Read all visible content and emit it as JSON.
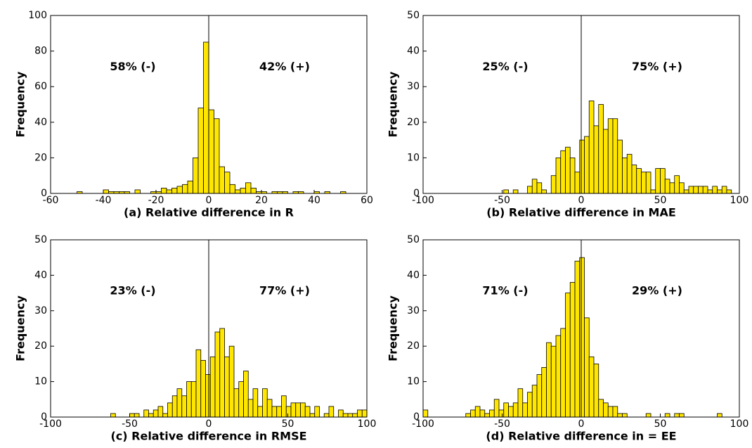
{
  "chart_data": [
    {
      "type": "histogram",
      "xlabel": "(a) Relative difference in R",
      "ylabel": "Frequency",
      "annotations": [
        "58% (-)",
        "42% (+)"
      ],
      "color": "#ffe600",
      "bins": [
        -52,
        -50,
        -48,
        -46,
        -44,
        -42,
        -40,
        -38,
        -36,
        -34,
        -32,
        -30,
        -28,
        -26,
        -24,
        -22,
        -20,
        -18,
        -16,
        -14,
        -12,
        -10,
        -8,
        -6,
        -4,
        -2,
        0,
        2,
        4,
        6,
        8,
        10,
        12,
        14,
        16,
        18,
        20,
        22,
        24,
        26,
        28,
        30,
        32,
        34,
        36,
        38,
        40,
        42,
        44,
        46,
        48,
        50,
        52,
        54
      ],
      "values": [
        0,
        1,
        0,
        0,
        0,
        0,
        2,
        1,
        1,
        1,
        1,
        0,
        2,
        0,
        0,
        1,
        1,
        3,
        2,
        3,
        4,
        5,
        7,
        20,
        48,
        85,
        47,
        42,
        15,
        12,
        5,
        2,
        3,
        6,
        3,
        1,
        1,
        0,
        1,
        1,
        1,
        0,
        1,
        1,
        0,
        0,
        1,
        0,
        1,
        0,
        0,
        1,
        0
      ],
      "xlim": [
        -60,
        60
      ],
      "ylim": [
        0,
        100
      ],
      "xticks": [
        -60,
        -40,
        -20,
        0,
        20,
        40,
        60
      ],
      "yticks": [
        0,
        20,
        40,
        60,
        80,
        100
      ]
    },
    {
      "type": "histogram",
      "xlabel": "(b) Relative difference in MAE",
      "ylabel": "Frequency",
      "annotations": [
        "25% (-)",
        "75% (+)"
      ],
      "color": "#ffe600",
      "bins": [
        -49,
        -46,
        -43,
        -40,
        -37,
        -34,
        -31,
        -28,
        -25,
        -22,
        -19,
        -16,
        -13,
        -10,
        -7,
        -4,
        -1,
        2,
        5,
        8,
        11,
        14,
        17,
        20,
        23,
        26,
        29,
        32,
        35,
        38,
        41,
        44,
        47,
        50,
        53,
        56,
        59,
        62,
        65,
        68,
        71,
        74,
        77,
        80,
        83,
        86,
        89,
        92,
        95
      ],
      "values": [
        1,
        0,
        1,
        0,
        0,
        2,
        4,
        3,
        1,
        0,
        5,
        10,
        12,
        13,
        10,
        6,
        15,
        16,
        26,
        19,
        25,
        18,
        21,
        21,
        15,
        10,
        11,
        8,
        7,
        6,
        6,
        1,
        7,
        7,
        4,
        3,
        5,
        3,
        1,
        2,
        2,
        2,
        2,
        1,
        2,
        1,
        2,
        1
      ],
      "xlim": [
        -100,
        100
      ],
      "ylim": [
        0,
        50
      ],
      "xticks": [
        -100,
        -50,
        0,
        50,
        100
      ],
      "yticks": [
        0,
        10,
        20,
        30,
        40,
        50
      ]
    },
    {
      "type": "histogram",
      "xlabel": "(c) Relative difference in RMSE",
      "ylabel": "Frequency",
      "annotations": [
        "23% (-)",
        "77% (+)"
      ],
      "color": "#ffe600",
      "bins": [
        -62,
        -59,
        -56,
        -53,
        -50,
        -47,
        -44,
        -41,
        -38,
        -35,
        -32,
        -29,
        -26,
        -23,
        -20,
        -17,
        -14,
        -11,
        -8,
        -5,
        -2,
        1,
        4,
        7,
        10,
        13,
        16,
        19,
        22,
        25,
        28,
        31,
        34,
        37,
        40,
        43,
        46,
        49,
        52,
        55,
        58,
        61,
        64,
        67,
        70,
        73,
        76,
        79,
        82,
        85,
        88,
        91,
        94,
        97,
        100
      ],
      "values": [
        1,
        0,
        0,
        0,
        1,
        1,
        0,
        2,
        1,
        2,
        3,
        1,
        4,
        6,
        8,
        6,
        10,
        10,
        19,
        16,
        12,
        17,
        24,
        25,
        17,
        20,
        8,
        10,
        13,
        5,
        8,
        3,
        8,
        5,
        3,
        3,
        6,
        3,
        4,
        4,
        4,
        3,
        1,
        3,
        0,
        1,
        3,
        0,
        2,
        1,
        1,
        1,
        2,
        2
      ],
      "xlim": [
        -100,
        100
      ],
      "ylim": [
        0,
        50
      ],
      "xticks": [
        -100,
        -50,
        0,
        50,
        100
      ],
      "yticks": [
        0,
        10,
        20,
        30,
        40,
        50
      ]
    },
    {
      "type": "histogram",
      "xlabel": "(d) Relative difference in = EE",
      "ylabel": "Frequency",
      "annotations": [
        "71% (-)",
        "29% (+)"
      ],
      "color": "#ffe600",
      "bins": [
        -100,
        -97,
        -94,
        -91,
        -88,
        -85,
        -82,
        -79,
        -76,
        -73,
        -70,
        -67,
        -64,
        -61,
        -58,
        -55,
        -52,
        -49,
        -46,
        -43,
        -40,
        -37,
        -34,
        -31,
        -28,
        -25,
        -22,
        -19,
        -16,
        -13,
        -10,
        -7,
        -4,
        -1,
        2,
        5,
        8,
        11,
        14,
        17,
        20,
        23,
        26,
        29,
        32,
        35,
        38,
        41,
        44,
        47,
        50,
        53,
        56,
        59,
        62,
        65,
        68,
        71,
        74,
        77,
        80,
        83,
        86,
        89
      ],
      "values": [
        2,
        0,
        0,
        0,
        0,
        0,
        0,
        0,
        0,
        1,
        2,
        3,
        2,
        1,
        2,
        5,
        2,
        4,
        3,
        4,
        8,
        4,
        7,
        9,
        12,
        14,
        21,
        20,
        23,
        25,
        35,
        38,
        44,
        45,
        28,
        17,
        15,
        5,
        4,
        3,
        3,
        1,
        1,
        0,
        0,
        0,
        0,
        1,
        0,
        0,
        0,
        1,
        0,
        1,
        1,
        0,
        0,
        0,
        0,
        0,
        0,
        0,
        1
      ],
      "xlim": [
        -100,
        100
      ],
      "ylim": [
        0,
        50
      ],
      "xticks": [
        -100,
        -50,
        0,
        50,
        100
      ],
      "yticks": [
        0,
        10,
        20,
        30,
        40,
        50
      ]
    }
  ]
}
